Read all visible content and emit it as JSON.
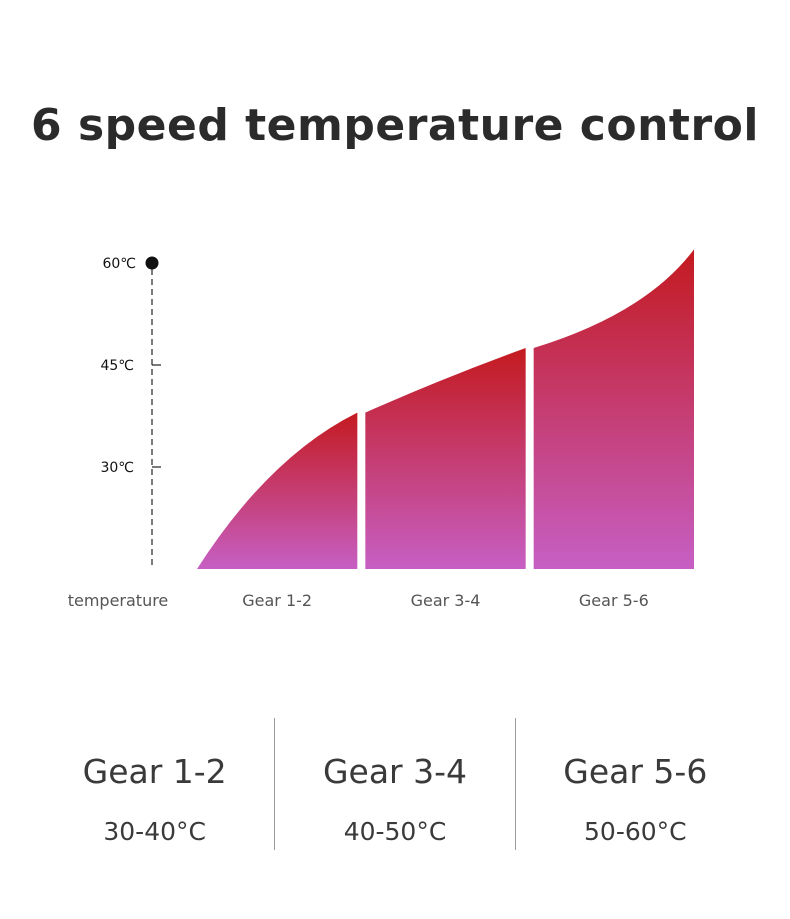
{
  "title": "6 speed temperature control",
  "chart_data": {
    "type": "area",
    "title": "6 speed temperature control",
    "xlabel": "temperature",
    "ylabel": "",
    "y_tick_labels": [
      "60℃",
      "45℃",
      "30℃"
    ],
    "y_ticks": [
      60,
      45,
      30
    ],
    "ylim": [
      15,
      60
    ],
    "categories": [
      "Gear 1-2",
      "Gear 3-4",
      "Gear 5-6"
    ],
    "segments": [
      {
        "label": "Gear 1-2",
        "start": 15,
        "end": 38
      },
      {
        "label": "Gear 3-4",
        "start": 38,
        "end": 47.5
      },
      {
        "label": "Gear 5-6",
        "start": 47.5,
        "end": 62
      }
    ],
    "gradient": {
      "bottom": "#c65fc4",
      "top": "#c41a1f"
    },
    "grid": false,
    "legend": "none"
  },
  "summary": [
    {
      "name": "Gear 1-2",
      "range": "30-40°C"
    },
    {
      "name": "Gear 3-4",
      "range": "40-50°C"
    },
    {
      "name": "Gear 5-6",
      "range": "50-60°C"
    }
  ]
}
